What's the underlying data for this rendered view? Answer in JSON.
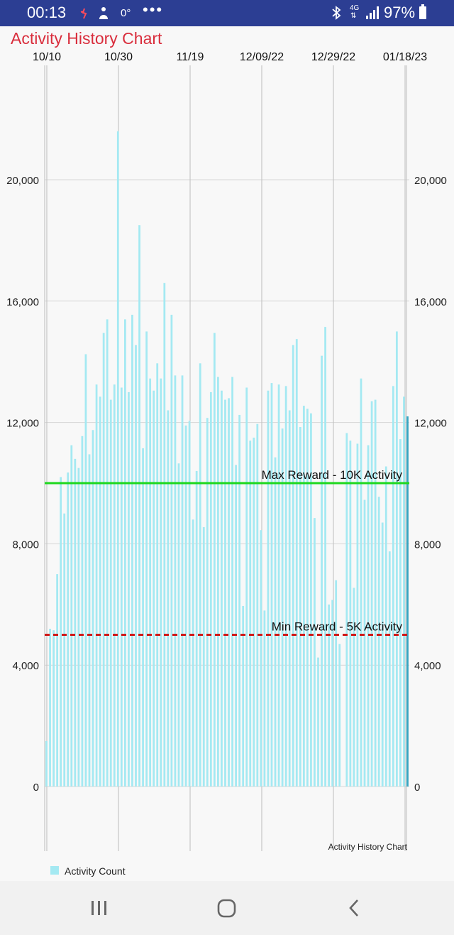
{
  "status_bar": {
    "time": "00:13",
    "temperature": "0°",
    "network": "4G",
    "battery": "97%",
    "icons": [
      "activity-icon",
      "fitness-icon",
      "more-icon",
      "bluetooth-icon",
      "network-4g-icon",
      "signal-icon",
      "battery-icon"
    ]
  },
  "colors": {
    "status_bar": "#2c3e93",
    "title": "#d92d3c",
    "bar": "#a4e9f2",
    "max_line": "#1ed81e",
    "min_line": "#d01818"
  },
  "chart_data": {
    "type": "bar",
    "title": "Activity History Chart",
    "description": "Activity History Chart",
    "x_ticks": [
      "10/10",
      "10/30",
      "11/19",
      "12/09/22",
      "12/29/22",
      "01/18/23"
    ],
    "y_ticks": [
      "0",
      "4,000",
      "8,000",
      "12,000",
      "16,000",
      "20,000"
    ],
    "ylim": [
      0,
      23000
    ],
    "y_axis_both_sides": true,
    "grid": true,
    "legend": {
      "position": "bottom-left",
      "entries": [
        "Activity Count"
      ]
    },
    "series": [
      {
        "name": "Activity Count",
        "values": [
          1500,
          5200,
          5150,
          7000,
          10200,
          9000,
          10350,
          11250,
          10800,
          10500,
          11550,
          14250,
          10950,
          11750,
          13250,
          12850,
          14950,
          15400,
          12750,
          13250,
          21600,
          13150,
          15400,
          13000,
          15550,
          14550,
          18500,
          11150,
          15000,
          13450,
          13050,
          13950,
          13450,
          16600,
          12400,
          15550,
          13550,
          10650,
          13550,
          11900,
          12050,
          8800,
          10400,
          13950,
          8550,
          12150,
          13000,
          14950,
          13500,
          13050,
          12750,
          12800,
          13500,
          10600,
          12250,
          5950,
          13150,
          11400,
          11500,
          11950,
          8450,
          5800,
          13050,
          13300,
          10850,
          13250,
          11800,
          13200,
          12400,
          14550,
          14750,
          11850,
          12550,
          12450,
          12300,
          8850,
          4250,
          14200,
          15150,
          6000,
          6150,
          6800,
          4700,
          0,
          11650,
          11400,
          6550,
          11300,
          13450,
          9450,
          11250,
          12700,
          12750,
          9550,
          8700,
          10550,
          7750,
          13200,
          15000,
          11450,
          12850,
          12200
        ]
      }
    ],
    "annotations": [
      {
        "label": "Max Reward - 10K Activity",
        "value": 10000,
        "style": "solid",
        "color": "#1ed81e"
      },
      {
        "label": "Min Reward - 5K Activity",
        "value": 5000,
        "style": "dashed",
        "color": "#d01818"
      }
    ]
  },
  "nav_bar": {
    "buttons": [
      "recent-apps-icon",
      "home-icon",
      "back-icon"
    ]
  }
}
